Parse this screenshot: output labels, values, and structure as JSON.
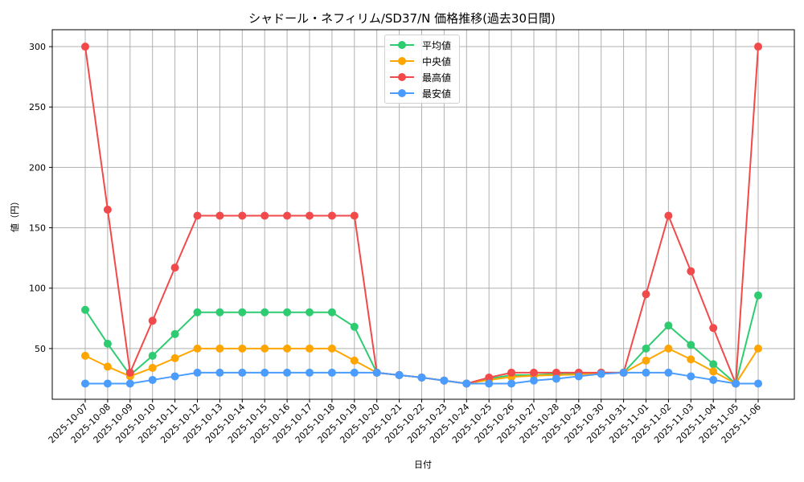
{
  "chart_data": {
    "type": "line",
    "title": "シャドール・ネフィリム/SD37/N 価格推移(過去30日間)",
    "xlabel": "日付",
    "ylabel": "値（円）",
    "ylim": [
      8,
      314
    ],
    "yticks": [
      50,
      100,
      150,
      200,
      250,
      300
    ],
    "grid": true,
    "legend_position": "upper center",
    "categories": [
      "2025-10-07",
      "2025-10-08",
      "2025-10-09",
      "2025-10-10",
      "2025-10-11",
      "2025-10-12",
      "2025-10-13",
      "2025-10-14",
      "2025-10-15",
      "2025-10-16",
      "2025-10-17",
      "2025-10-18",
      "2025-10-19",
      "2025-10-20",
      "2025-10-21",
      "2025-10-22",
      "2025-10-23",
      "2025-10-24",
      "2025-10-25",
      "2025-10-26",
      "2025-10-27",
      "2025-10-28",
      "2025-10-29",
      "2025-10-30",
      "2025-10-31",
      "2025-11-01",
      "2025-11-02",
      "2025-11-03",
      "2025-11-04",
      "2025-11-05",
      "2025-11-06"
    ],
    "series": [
      {
        "name": "平均値",
        "color": "#2ecc71",
        "values": [
          82,
          54,
          28,
          44,
          62,
          80,
          80,
          80,
          80,
          80,
          80,
          80,
          68,
          30,
          28,
          26,
          23.5,
          21,
          25,
          28,
          28,
          29,
          29,
          30,
          30,
          50,
          69,
          53,
          37,
          21,
          94
        ]
      },
      {
        "name": "中央値",
        "color": "#ffa500",
        "values": [
          44,
          35,
          27,
          34,
          42,
          50,
          50,
          50,
          50,
          50,
          50,
          50,
          40,
          30,
          28,
          26,
          23.5,
          21,
          24,
          26.5,
          27.5,
          28,
          28.5,
          29.5,
          30,
          40,
          50,
          41,
          31,
          21,
          50
        ]
      },
      {
        "name": "最高値",
        "color": "#f24a4a",
        "values": [
          300,
          165,
          30,
          73,
          117,
          160,
          160,
          160,
          160,
          160,
          160,
          160,
          160,
          30,
          28,
          26,
          23.5,
          21,
          26,
          30,
          30,
          30,
          30,
          30,
          30,
          95,
          160,
          114,
          67,
          21,
          300
        ]
      },
      {
        "name": "最安値",
        "color": "#4a9cff",
        "values": [
          21,
          21,
          21,
          24,
          27,
          30,
          30,
          30,
          30,
          30,
          30,
          30,
          30,
          30,
          28,
          26,
          23.5,
          21,
          21,
          21,
          23.5,
          25,
          27,
          29,
          30,
          30,
          30,
          27,
          24,
          21,
          21
        ]
      }
    ]
  }
}
